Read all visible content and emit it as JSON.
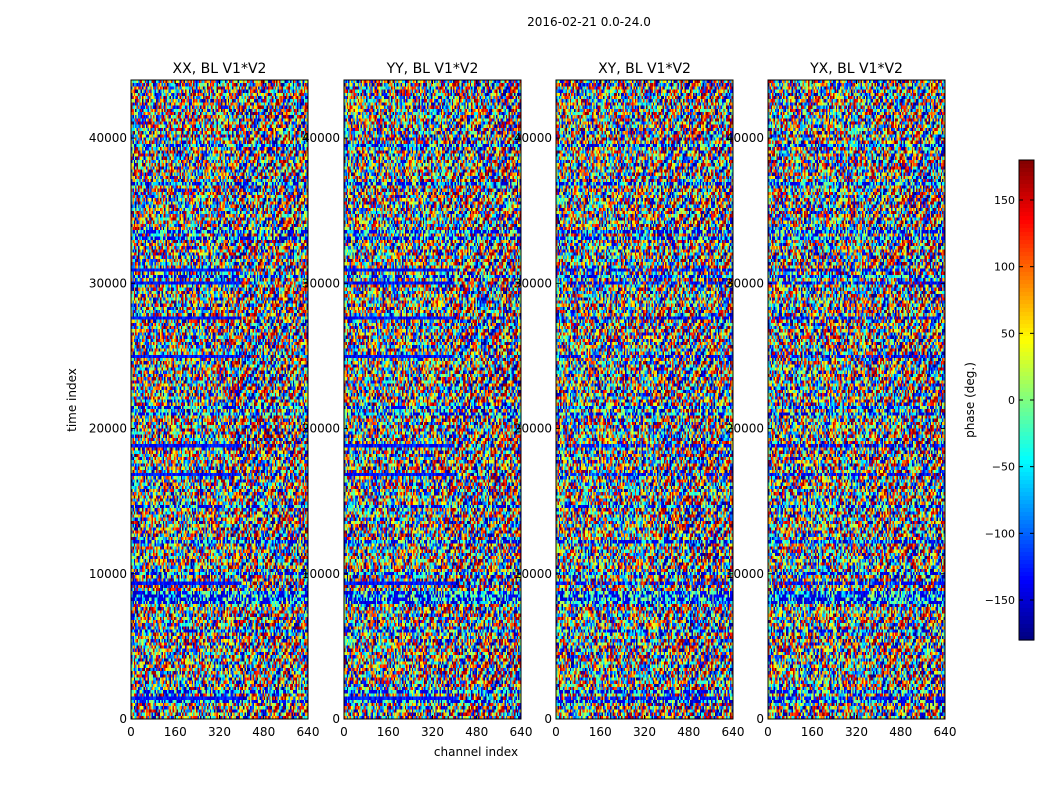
{
  "chart_data": {
    "type": "heatmap",
    "suptitle": "2016-02-21 0.0-24.0",
    "xlabel": "channel index",
    "ylabel": "time index",
    "xlim": [
      0,
      640
    ],
    "ylim": [
      0,
      44000
    ],
    "x_ticks": [
      0,
      160,
      320,
      480,
      640
    ],
    "y_ticks": [
      0,
      10000,
      20000,
      30000,
      40000
    ],
    "colorbar": {
      "label": "phase (deg.)",
      "range": [
        -180,
        180
      ],
      "ticks": [
        150,
        100,
        50,
        0,
        -50,
        -100,
        -150
      ],
      "tick_labels": [
        "150",
        "100",
        "50",
        "0",
        "−50",
        "−100",
        "−150"
      ],
      "colormap": "jet"
    },
    "panels": [
      {
        "title": "XX, BL V1*V2"
      },
      {
        "title": "YY, BL V1*V2"
      },
      {
        "title": "XY, BL V1*V2"
      },
      {
        "title": "YX, BL V1*V2"
      }
    ]
  }
}
